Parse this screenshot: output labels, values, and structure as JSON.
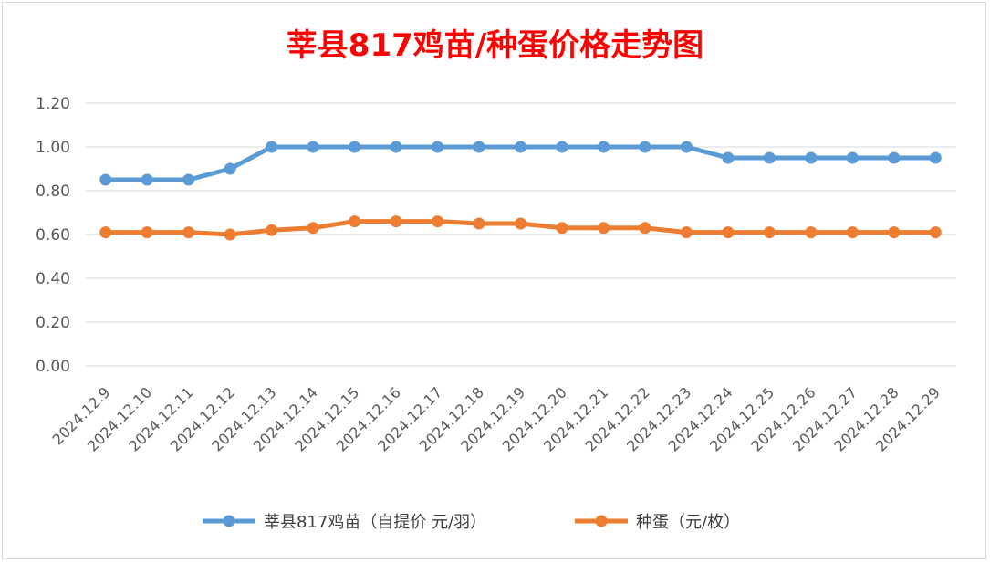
{
  "chart_data": {
    "type": "line",
    "title": "莘县817鸡苗/种蛋价格走势图",
    "categories": [
      "2024.12.9",
      "2024.12.10",
      "2024.12.11",
      "2024.12.12",
      "2024.12.13",
      "2024.12.14",
      "2024.12.15",
      "2024.12.16",
      "2024.12.17",
      "2024.12.18",
      "2024.12.19",
      "2024.12.20",
      "2024.12.21",
      "2024.12.22",
      "2024.12.23",
      "2024.12.24",
      "2024.12.25",
      "2024.12.26",
      "2024.12.27",
      "2024.12.28",
      "2024.12.29"
    ],
    "series": [
      {
        "name": "莘县817鸡苗（自提价 元/羽）",
        "color": "#5b9bd5",
        "values": [
          0.85,
          0.85,
          0.85,
          0.9,
          1.0,
          1.0,
          1.0,
          1.0,
          1.0,
          1.0,
          1.0,
          1.0,
          1.0,
          1.0,
          1.0,
          0.95,
          0.95,
          0.95,
          0.95,
          0.95,
          0.95
        ]
      },
      {
        "name": "种蛋（元/枚）",
        "color": "#ed7d31",
        "values": [
          0.61,
          0.61,
          0.61,
          0.6,
          0.62,
          0.63,
          0.66,
          0.66,
          0.66,
          0.65,
          0.65,
          0.63,
          0.63,
          0.63,
          0.61,
          0.61,
          0.61,
          0.61,
          0.61,
          0.61,
          0.61
        ]
      }
    ],
    "yticks": [
      "0.00",
      "0.20",
      "0.40",
      "0.60",
      "0.80",
      "1.00",
      "1.20"
    ],
    "ylim": [
      0,
      1.2
    ],
    "grid": true,
    "legend_position": "bottom"
  }
}
